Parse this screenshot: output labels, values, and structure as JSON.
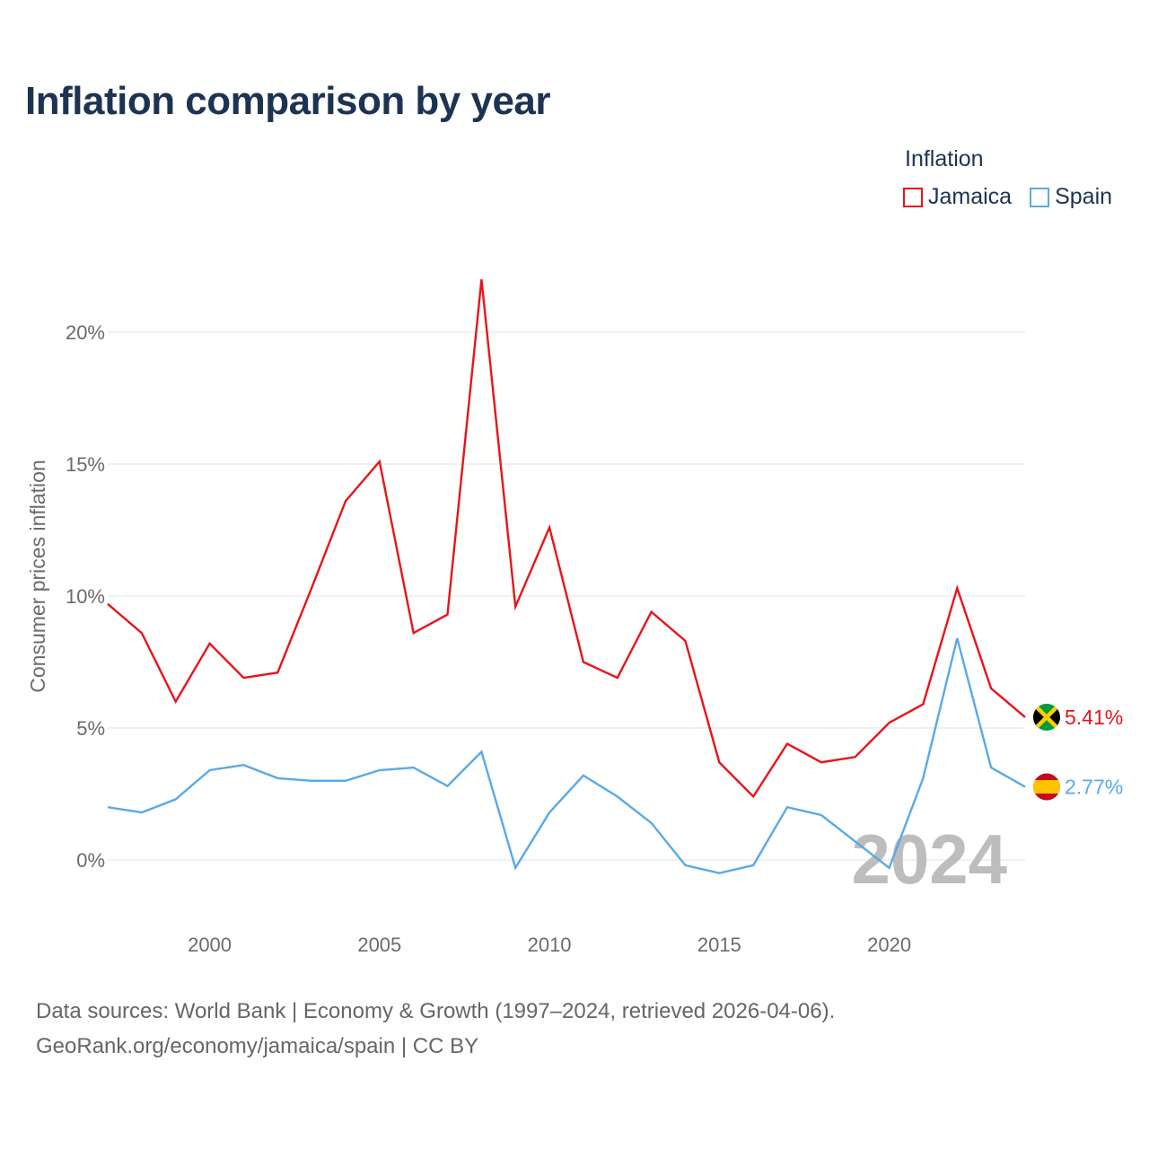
{
  "page": {
    "title": "Inflation comparison by year",
    "source_line1": "Data sources: World Bank | Economy & Growth (1997–2024, retrieved 2026-04-06).",
    "source_line2": "GeoRank.org/economy/jamaica/spain | CC BY"
  },
  "legend": {
    "title": "Inflation",
    "items": [
      {
        "label": "Jamaica",
        "color": "#e8141a"
      },
      {
        "label": "Spain",
        "color": "#5aa9e6"
      }
    ]
  },
  "chart_data": {
    "type": "line",
    "title": "Inflation comparison by year",
    "xlabel": "",
    "ylabel": "Consumer prices inflation",
    "xlim": [
      1997,
      2024
    ],
    "ylim": [
      -2,
      22
    ],
    "x_ticks": [
      2000,
      2005,
      2010,
      2015,
      2020
    ],
    "y_ticks": [
      0,
      5,
      10,
      15,
      20
    ],
    "y_tick_labels": [
      "0%",
      "5%",
      "10%",
      "15%",
      "20%"
    ],
    "grid": true,
    "current_year_label": "2024",
    "x": [
      1997,
      1998,
      1999,
      2000,
      2001,
      2002,
      2003,
      2004,
      2005,
      2006,
      2007,
      2008,
      2009,
      2010,
      2011,
      2012,
      2013,
      2014,
      2015,
      2016,
      2017,
      2018,
      2019,
      2020,
      2021,
      2022,
      2023,
      2024
    ],
    "series": [
      {
        "name": "Jamaica",
        "color": "#e8141a",
        "end_label": "5.41%",
        "flag": "jamaica-flag",
        "values": [
          9.7,
          8.6,
          6.0,
          8.2,
          6.9,
          7.1,
          10.3,
          13.6,
          15.1,
          8.6,
          9.3,
          22.0,
          9.6,
          12.6,
          7.5,
          6.9,
          9.4,
          8.3,
          3.7,
          2.4,
          4.4,
          3.7,
          3.9,
          5.2,
          5.9,
          10.3,
          6.5,
          5.41
        ]
      },
      {
        "name": "Spain",
        "color": "#5aa9e6",
        "end_label": "2.77%",
        "flag": "spain-flag",
        "values": [
          2.0,
          1.8,
          2.3,
          3.4,
          3.6,
          3.1,
          3.0,
          3.0,
          3.4,
          3.5,
          2.8,
          4.1,
          -0.3,
          1.8,
          3.2,
          2.4,
          1.4,
          -0.2,
          -0.5,
          -0.2,
          2.0,
          1.7,
          0.7,
          -0.3,
          3.1,
          8.4,
          3.5,
          2.77
        ]
      }
    ]
  }
}
